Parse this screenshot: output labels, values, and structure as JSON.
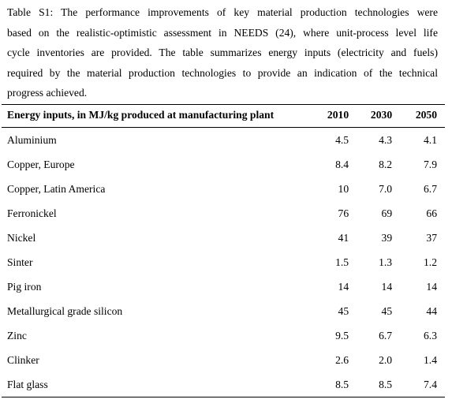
{
  "caption": {
    "lines": [
      "Table S1: The performance improvements of key material production technologies were",
      "based on the realistic-optimistic assessment in NEEDS (24), where unit-process level life",
      "cycle inventories are provided. The table summarizes energy inputs (electricity and fuels)",
      "required by the material production technologies to provide an indication of the technical",
      "progress achieved."
    ]
  },
  "table": {
    "header": {
      "label": "Energy inputs, in MJ/kg produced at manufacturing plant",
      "y2010": "2010",
      "y2030": "2030",
      "y2050": "2050"
    },
    "rows": [
      {
        "name": "Aluminium",
        "v2010": "4.5",
        "v2030": "4.3",
        "v2050": "4.1"
      },
      {
        "name": "Copper, Europe",
        "v2010": "8.4",
        "v2030": "8.2",
        "v2050": "7.9"
      },
      {
        "name": "Copper, Latin America",
        "v2010": "10",
        "v2030": "7.0",
        "v2050": "6.7"
      },
      {
        "name": "Ferronickel",
        "v2010": "76",
        "v2030": "69",
        "v2050": "66"
      },
      {
        "name": "Nickel",
        "v2010": "41",
        "v2030": "39",
        "v2050": "37"
      },
      {
        "name": "Sinter",
        "v2010": "1.5",
        "v2030": "1.3",
        "v2050": "1.2"
      },
      {
        "name": "Pig iron",
        "v2010": "14",
        "v2030": "14",
        "v2050": "14"
      },
      {
        "name": "Metallurgical grade silicon",
        "v2010": "45",
        "v2030": "45",
        "v2050": "44"
      },
      {
        "name": "Zinc",
        "v2010": "9.5",
        "v2030": "6.7",
        "v2050": "6.3"
      },
      {
        "name": "Clinker",
        "v2010": "2.6",
        "v2030": "2.0",
        "v2050": "1.4"
      },
      {
        "name": "Flat glass",
        "v2010": "8.5",
        "v2030": "8.5",
        "v2050": "7.4"
      }
    ]
  }
}
